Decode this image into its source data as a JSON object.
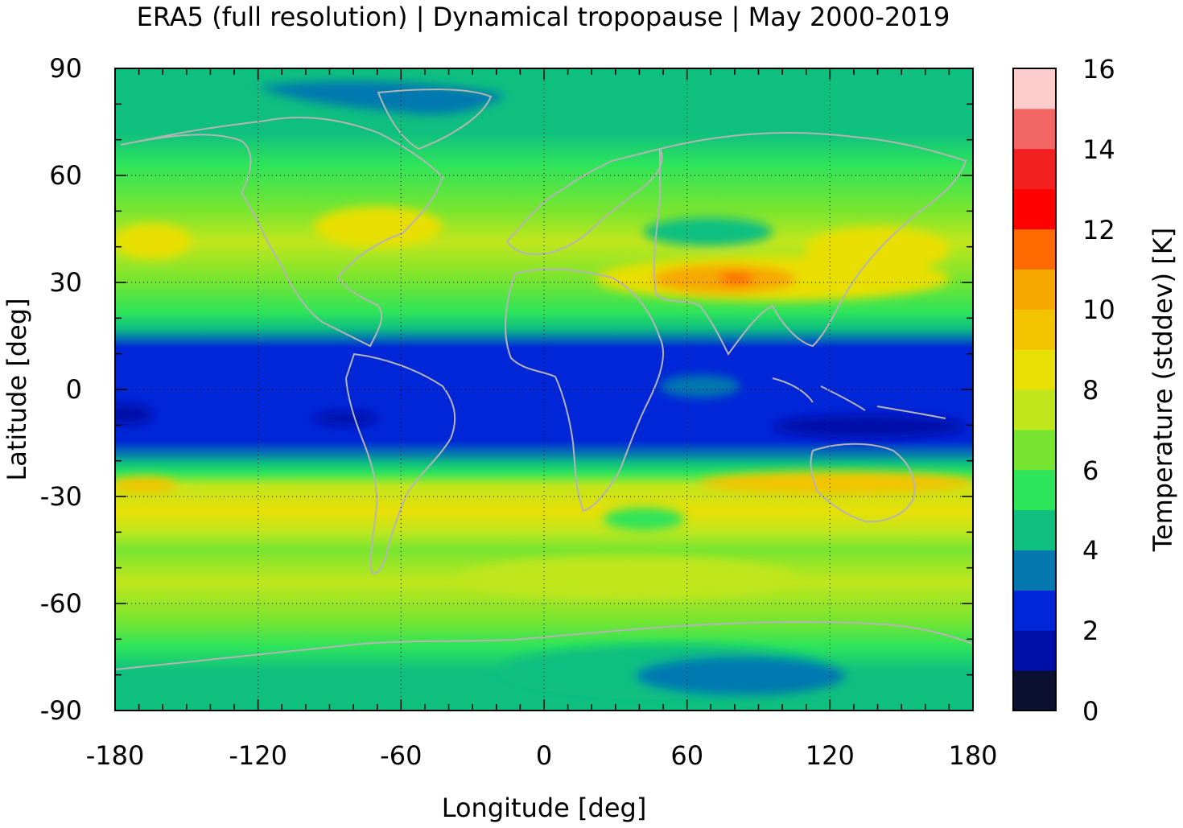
{
  "title": "ERA5 (full resolution) | Dynamical tropopause | May 2000-2019",
  "x_axis": {
    "label": "Longitude [deg]",
    "ticks": [
      "-180",
      "-120",
      "-60",
      "0",
      "60",
      "120",
      "180"
    ],
    "range": [
      -180,
      180
    ]
  },
  "y_axis": {
    "label": "Latitude [deg]",
    "ticks": [
      "90",
      "60",
      "30",
      "0",
      "-30",
      "-60",
      "-90"
    ],
    "range": [
      -90,
      90
    ]
  },
  "colorbar": {
    "label": "Temperature (stddev) [K]",
    "ticks": [
      "0",
      "2",
      "4",
      "6",
      "8",
      "10",
      "12",
      "14",
      "16"
    ],
    "range": [
      0,
      16
    ],
    "step": 1,
    "colors": [
      "#0b0f30",
      "#000fa8",
      "#0026d8",
      "#0678b0",
      "#0ebf80",
      "#2ee45a",
      "#77e530",
      "#c1e61c",
      "#e8df06",
      "#f2c400",
      "#f6a800",
      "#ff6a00",
      "#ff0000",
      "#f22020",
      "#f26565",
      "#ffcccc"
    ]
  },
  "map": {
    "variable": "Temperature (stddev) at dynamical tropopause",
    "grid": "dotted",
    "coastlines": true,
    "coastline_color": "#b4b4b4"
  }
}
